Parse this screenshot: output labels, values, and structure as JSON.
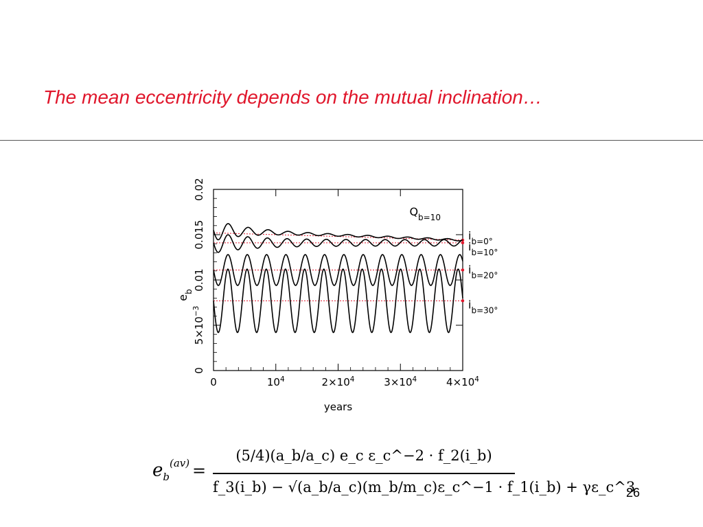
{
  "slide": {
    "title": "The mean eccentricity depends on the mutual inclination…",
    "page_number": "26"
  },
  "formula": {
    "lhs": "e",
    "lhs_sup": "(av)",
    "lhs_sub": "b",
    "equals": "=",
    "numerator": "(5/4)(a_b/a_c) e_c ε_c^−2 · f_2(i_b)",
    "denominator": "f_3(i_b) − √(a_b/a_c)(m_b/m_c)ε_c^−1 · f_1(i_b) + γε_c^3"
  },
  "chart_data": {
    "type": "line",
    "xlabel": "years",
    "ylabel": "e_b",
    "xlim": [
      0,
      40000
    ],
    "ylim": [
      0,
      0.02
    ],
    "xticks": [
      {
        "value": 0,
        "label": "0"
      },
      {
        "value": 10000,
        "label": "10^4"
      },
      {
        "value": 20000,
        "label": "2×10^4"
      },
      {
        "value": 30000,
        "label": "3×10^4"
      },
      {
        "value": 40000,
        "label": "4×10^4"
      }
    ],
    "yticks": [
      {
        "value": 0,
        "label": "0"
      },
      {
        "value": 0.005,
        "label": "5×10^−3"
      },
      {
        "value": 0.01,
        "label": "0.01"
      },
      {
        "value": 0.015,
        "label": "0.015"
      },
      {
        "value": 0.02,
        "label": "0.02"
      }
    ],
    "annotation": "Q_b=10",
    "mean_line_color": "#e0162b",
    "series": [
      {
        "name": "i_b=0°",
        "mean": 0.0147,
        "start": 0.0155,
        "end": 0.0144,
        "amplitude": 0.0001,
        "period": 3200,
        "initial_amplitude": 0.0011,
        "decay_years": 5000
      },
      {
        "name": "i_b=10°",
        "mean": 0.0141,
        "amplitude": 0.00035,
        "period": 3150,
        "initial_amplitude": 0.0008,
        "decay_years": 6000
      },
      {
        "name": "i_b=20°",
        "mean": 0.0111,
        "amplitude": 0.0017,
        "period": 3100
      },
      {
        "name": "i_b=30°",
        "mean": 0.0077,
        "amplitude": 0.0035,
        "period": 3080
      }
    ]
  }
}
